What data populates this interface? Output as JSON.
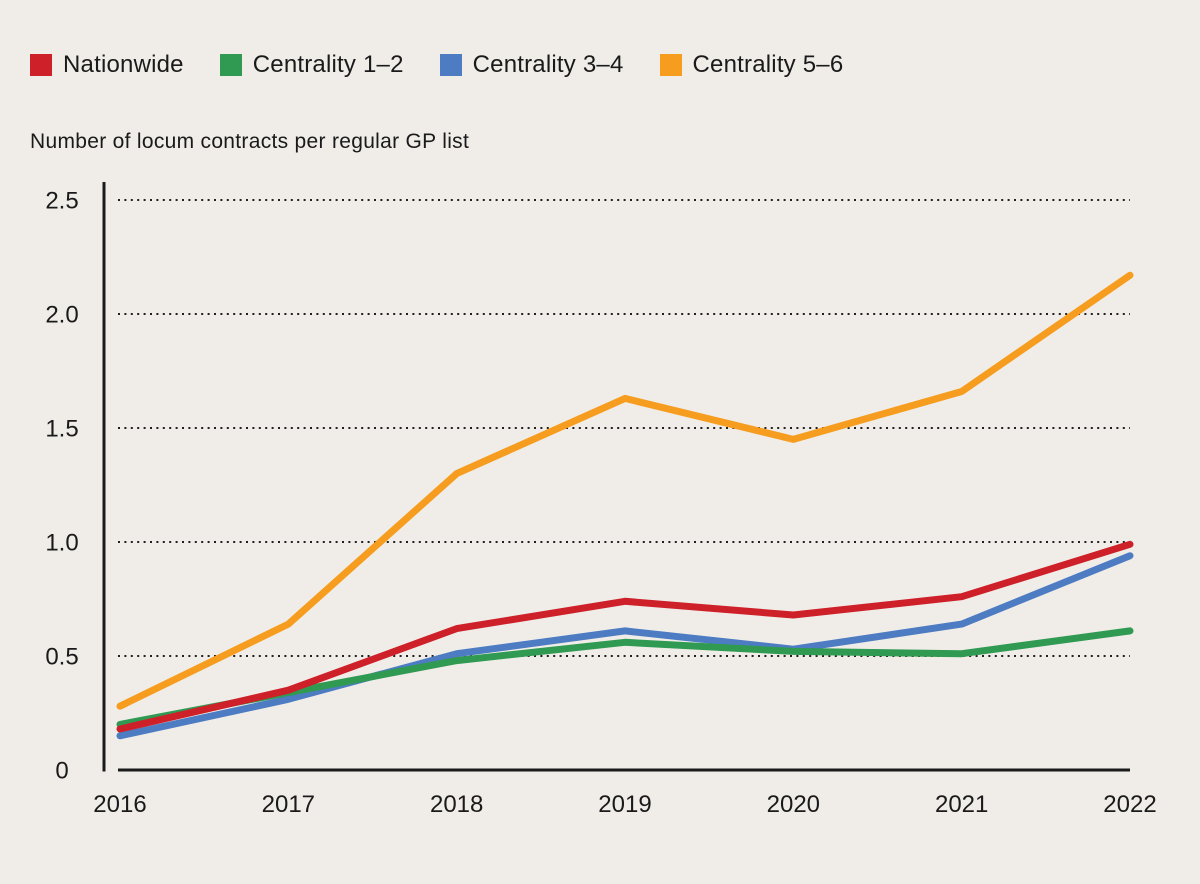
{
  "subtitle": "Number of locum contracts per regular GP list",
  "legend": {
    "items": [
      {
        "id": "nationwide",
        "label": "Nationwide",
        "color": "#ce2029"
      },
      {
        "id": "centrality-1-2",
        "label": "Centrality 1–2",
        "color": "#309a52"
      },
      {
        "id": "centrality-3-4",
        "label": "Centrality 3–4",
        "color": "#4d7cc2"
      },
      {
        "id": "centrality-5-6",
        "label": "Centrality 5–6",
        "color": "#f69c1f"
      }
    ]
  },
  "chart_data": {
    "type": "line",
    "title": "",
    "xlabel": "",
    "ylabel": "Number of locum contracts per regular GP list",
    "x": [
      "2016",
      "2017",
      "2018",
      "2019",
      "2020",
      "2021",
      "2022"
    ],
    "series": [
      {
        "name": "Nationwide",
        "color": "#ce2029",
        "z": 3,
        "values": [
          0.18,
          0.35,
          0.62,
          0.74,
          0.68,
          0.76,
          0.99
        ]
      },
      {
        "name": "Centrality 1–2",
        "color": "#309a52",
        "z": 2,
        "values": [
          0.2,
          0.34,
          0.48,
          0.56,
          0.52,
          0.51,
          0.61
        ]
      },
      {
        "name": "Centrality 3–4",
        "color": "#4d7cc2",
        "z": 1,
        "values": [
          0.15,
          0.31,
          0.51,
          0.61,
          0.53,
          0.64,
          0.94
        ]
      },
      {
        "name": "Centrality 5–6",
        "color": "#f69c1f",
        "z": 4,
        "values": [
          0.28,
          0.64,
          1.3,
          1.63,
          1.45,
          1.66,
          2.17
        ]
      }
    ],
    "ylim": [
      0,
      2.5
    ],
    "yticks": [
      "0",
      "0.5",
      "1.0",
      "1.5",
      "2.0",
      "2.5"
    ],
    "grid": "horizontal-dotted",
    "legend_position": "top-left"
  },
  "colors": {
    "background": "#f0ede9",
    "axis": "#1a1a1a",
    "grid": "#1f1f1f",
    "text": "#1a1a1a"
  }
}
